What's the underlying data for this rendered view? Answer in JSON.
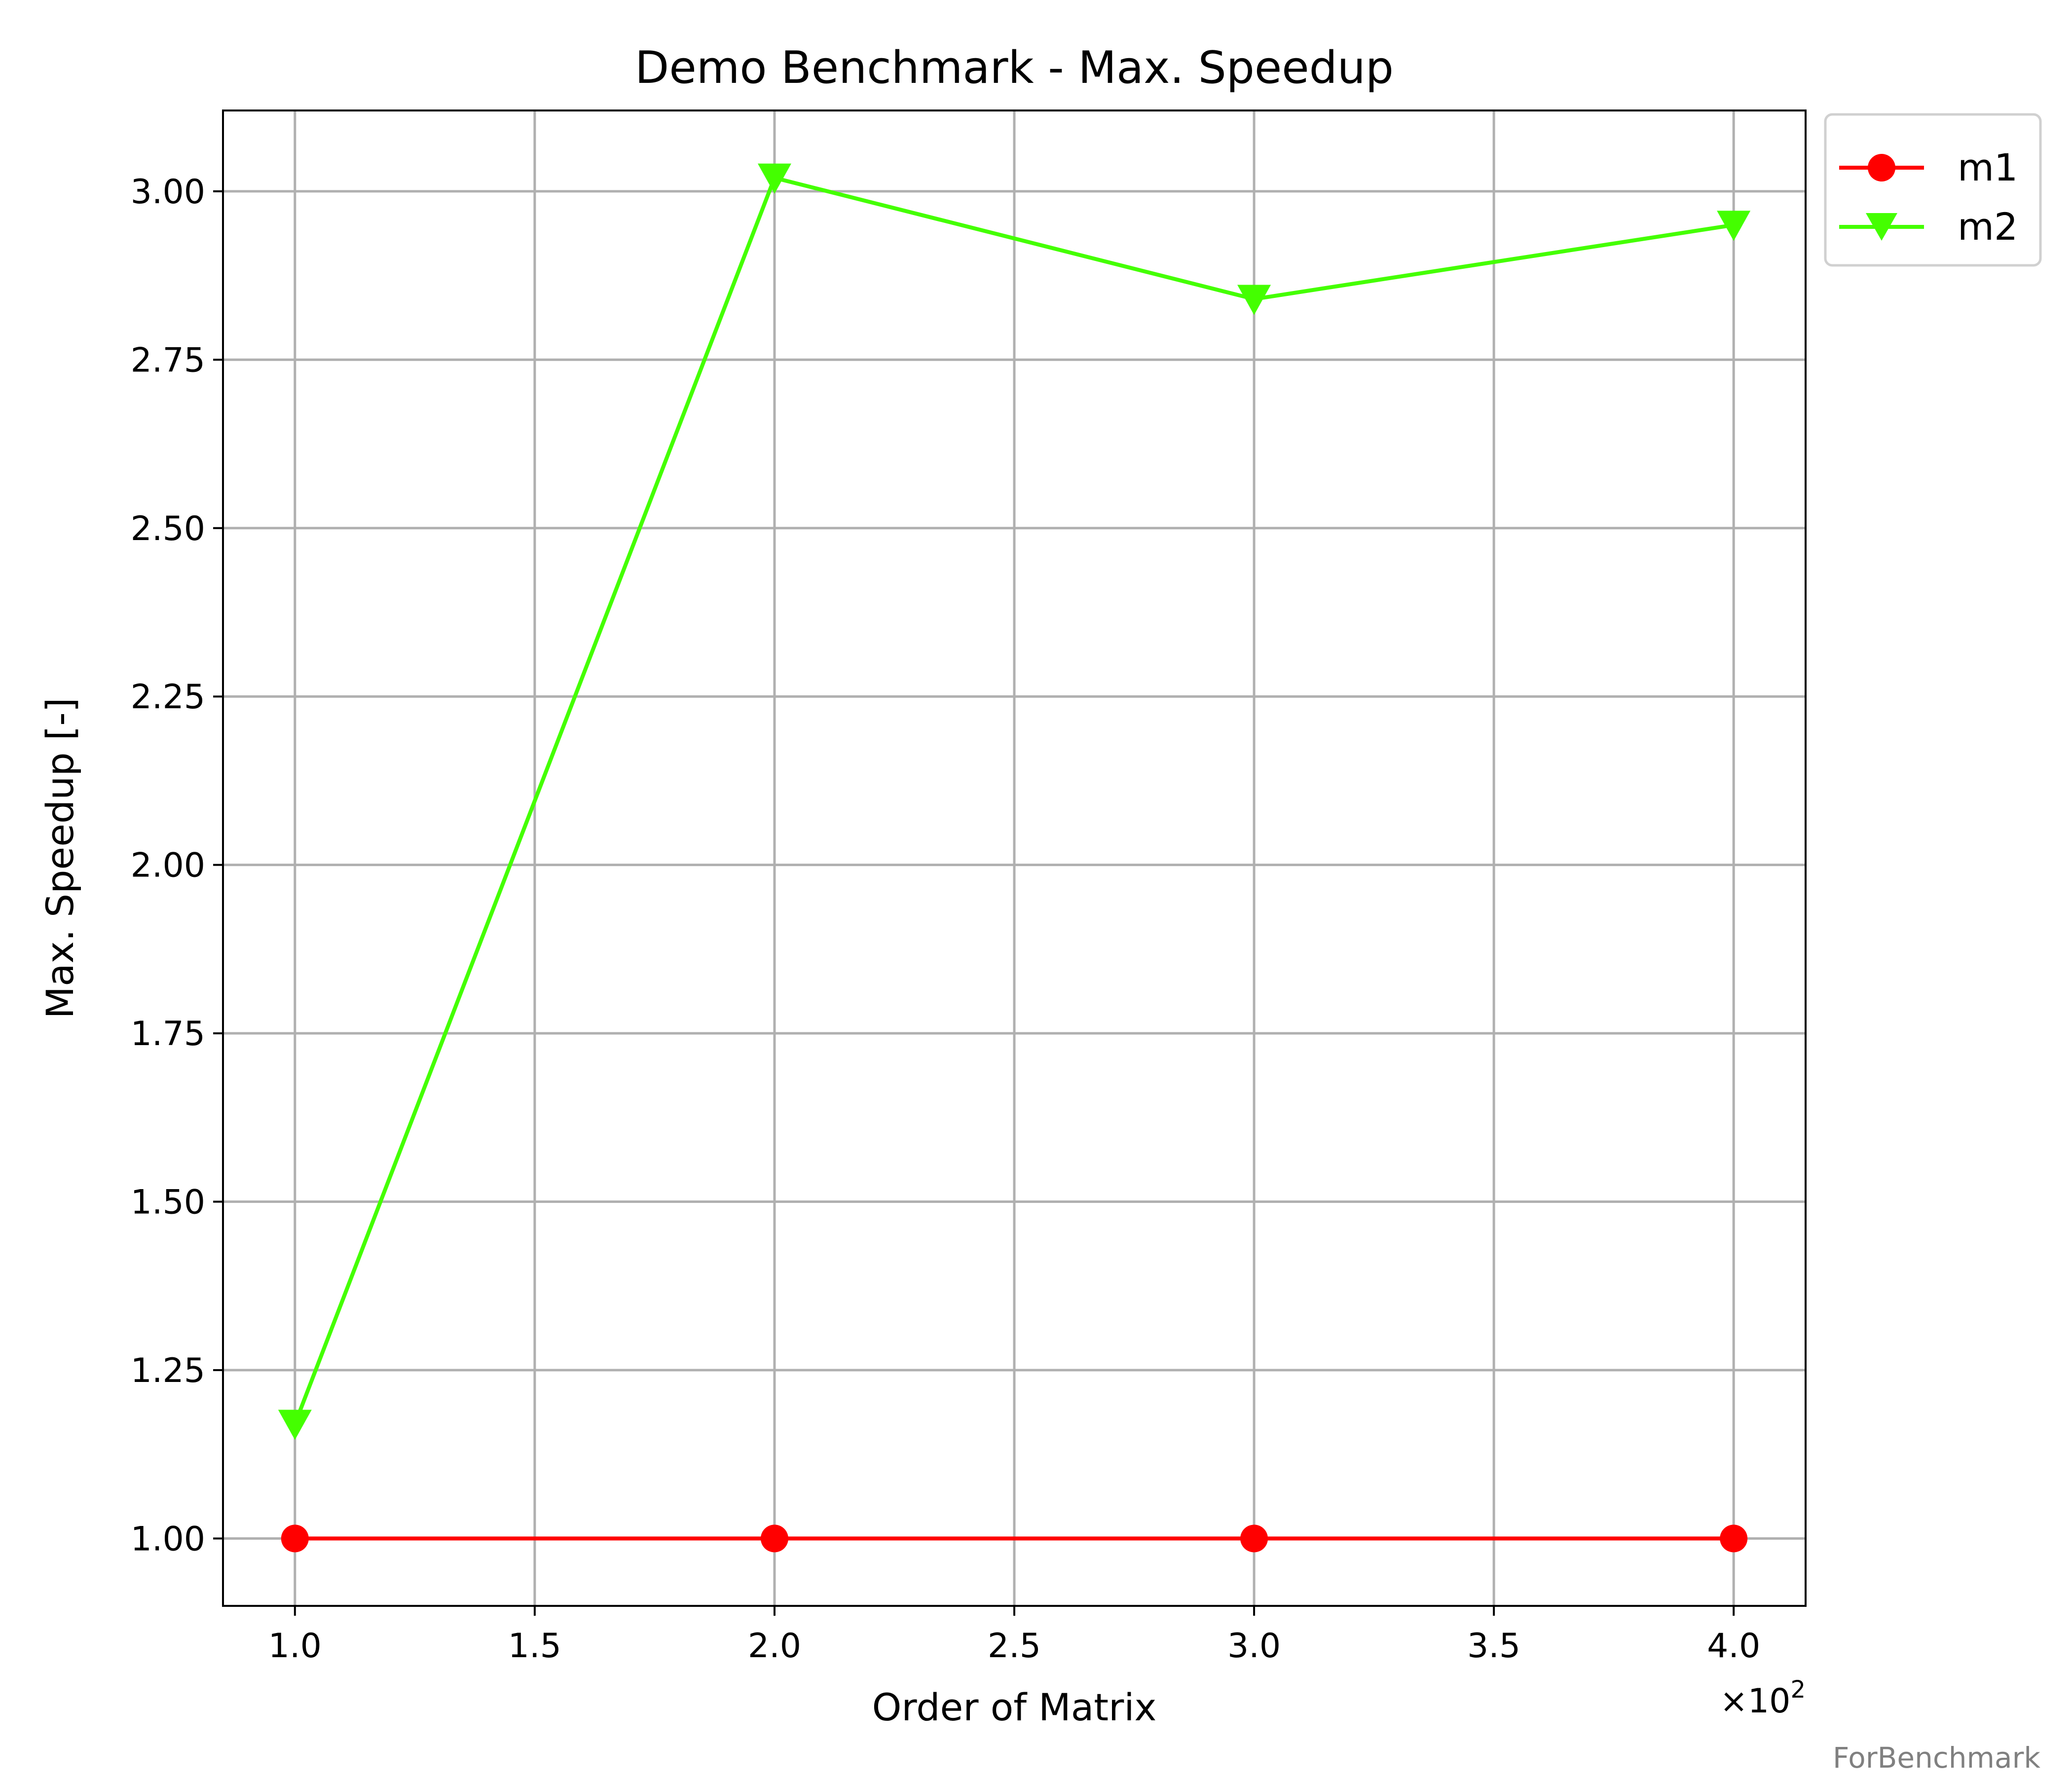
{
  "chart_data": {
    "type": "line",
    "title": "Demo Benchmark - Max. Speedup",
    "xlabel": "Order of Matrix",
    "ylabel": "Max. Speedup [-]",
    "x_multiplier_label": "×10",
    "x_multiplier_exponent": "2",
    "x": [
      100,
      200,
      300,
      400
    ],
    "xlim": [
      85,
      415
    ],
    "ylim": [
      0.9,
      3.12
    ],
    "xticks": [
      {
        "value": 100,
        "label": "1.0"
      },
      {
        "value": 150,
        "label": "1.5"
      },
      {
        "value": 200,
        "label": "2.0"
      },
      {
        "value": 250,
        "label": "2.5"
      },
      {
        "value": 300,
        "label": "3.0"
      },
      {
        "value": 350,
        "label": "3.5"
      },
      {
        "value": 400,
        "label": "4.0"
      }
    ],
    "yticks": [
      {
        "value": 1.0,
        "label": "1.00"
      },
      {
        "value": 1.25,
        "label": "1.25"
      },
      {
        "value": 1.5,
        "label": "1.50"
      },
      {
        "value": 1.75,
        "label": "1.75"
      },
      {
        "value": 2.0,
        "label": "2.00"
      },
      {
        "value": 2.25,
        "label": "2.25"
      },
      {
        "value": 2.5,
        "label": "2.50"
      },
      {
        "value": 2.75,
        "label": "2.75"
      },
      {
        "value": 3.0,
        "label": "3.00"
      }
    ],
    "grid": true,
    "legend_position": "outside-top-right",
    "series": [
      {
        "name": "m1",
        "values": [
          1.0,
          1.0,
          1.0,
          1.0
        ],
        "color": "#ff0000",
        "marker": "circle"
      },
      {
        "name": "m2",
        "values": [
          1.17,
          3.02,
          2.84,
          2.95
        ],
        "color": "#44ff00",
        "marker": "triangle-down"
      }
    ]
  },
  "footer": {
    "note": "ForBenchmark"
  }
}
